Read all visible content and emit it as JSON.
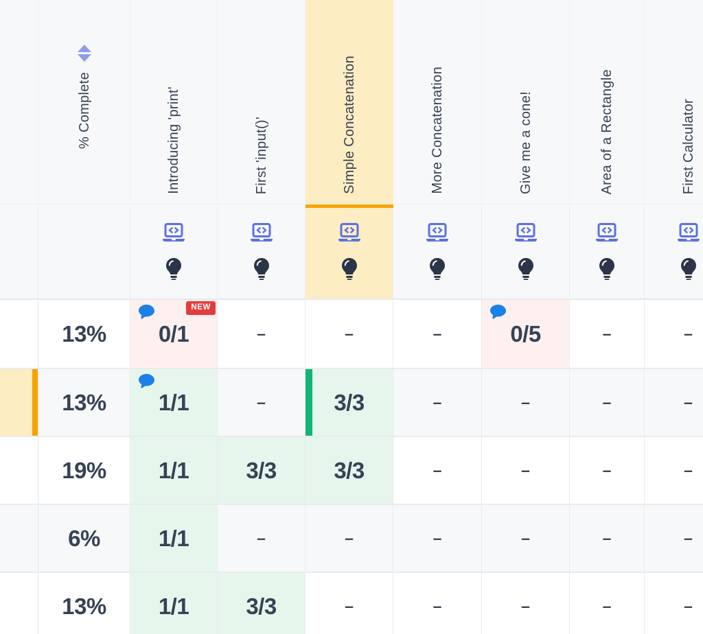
{
  "table": {
    "percent_header": "% Complete",
    "badge_new_label": "NEW",
    "exercise_columns": [
      {
        "label": "Introducing 'print'",
        "highlighted": false
      },
      {
        "label": "First 'input()'",
        "highlighted": false
      },
      {
        "label": "Simple Concatenation",
        "highlighted": true
      },
      {
        "label": "More Concatenation",
        "highlighted": false
      },
      {
        "label": "Give me a cone!",
        "highlighted": false
      },
      {
        "label": "Area of a Rectangle",
        "highlighted": false
      },
      {
        "label": "First Calculator",
        "highlighted": false
      }
    ],
    "column_icons": [
      "laptop-code",
      "lightbulb"
    ],
    "rows": [
      {
        "percent": "13%",
        "row_highlight": false,
        "cells": [
          {
            "value": "0/1",
            "state": "incomplete",
            "comment": true,
            "badge": "NEW"
          },
          {
            "value": "–"
          },
          {
            "value": "–"
          },
          {
            "value": "–"
          },
          {
            "value": "0/5",
            "state": "incomplete",
            "comment": true
          },
          {
            "value": "–"
          },
          {
            "value": "–"
          }
        ]
      },
      {
        "percent": "13%",
        "row_highlight": true,
        "cells": [
          {
            "value": "1/1",
            "state": "complete",
            "comment": true
          },
          {
            "value": "–"
          },
          {
            "value": "3/3",
            "state": "complete",
            "active_bar": true
          },
          {
            "value": "–"
          },
          {
            "value": "–"
          },
          {
            "value": "–"
          },
          {
            "value": "–"
          }
        ]
      },
      {
        "percent": "19%",
        "row_highlight": false,
        "cells": [
          {
            "value": "1/1",
            "state": "complete"
          },
          {
            "value": "3/3",
            "state": "complete"
          },
          {
            "value": "3/3",
            "state": "complete"
          },
          {
            "value": "–"
          },
          {
            "value": "–"
          },
          {
            "value": "–"
          },
          {
            "value": "–"
          }
        ]
      },
      {
        "percent": "6%",
        "row_highlight": false,
        "cells": [
          {
            "value": "1/1",
            "state": "complete"
          },
          {
            "value": "–"
          },
          {
            "value": "–"
          },
          {
            "value": "–"
          },
          {
            "value": "–"
          },
          {
            "value": "–"
          },
          {
            "value": "–"
          }
        ]
      },
      {
        "percent": "13%",
        "row_highlight": false,
        "cells": [
          {
            "value": "1/1",
            "state": "complete"
          },
          {
            "value": "3/3",
            "state": "complete"
          },
          {
            "value": "–"
          },
          {
            "value": "–"
          },
          {
            "value": "–"
          },
          {
            "value": "–"
          },
          {
            "value": "–"
          }
        ]
      }
    ],
    "colors": {
      "text_navy": "#364255",
      "accent_indigo": "#5c70e2",
      "sort_indigo": "#8d9cec",
      "bulb_navy": "#2b3547",
      "highlight_yellow": "#fcedc2",
      "highlight_orange": "#f7a400",
      "incomplete_pink": "#fdf0ef",
      "complete_mint": "#e6f6ed",
      "complete_green": "#10b573",
      "comment_blue": "#1d80e8",
      "badge_red": "#e23d3d",
      "stripe_gray": "#f7f8f9"
    }
  }
}
